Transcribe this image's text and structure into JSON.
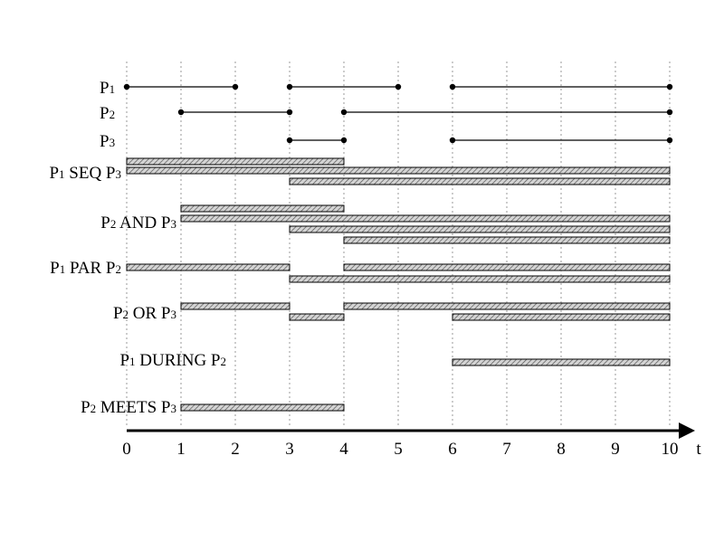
{
  "axis": {
    "label": "t",
    "min": 0,
    "max": 10,
    "ticks": [
      "0",
      "1",
      "2",
      "3",
      "4",
      "5",
      "6",
      "7",
      "8",
      "9",
      "10"
    ]
  },
  "colors": {
    "line": "#000000",
    "grid": "#999999",
    "bar_fill": "#d4d4d4",
    "hatch": "#555555"
  },
  "processes": [
    {
      "name": "P",
      "sub": "1",
      "segments": [
        [
          0,
          2
        ],
        [
          3,
          5
        ],
        [
          6,
          10
        ]
      ]
    },
    {
      "name": "P",
      "sub": "2",
      "segments": [
        [
          1,
          3
        ],
        [
          4,
          10
        ]
      ]
    },
    {
      "name": "P",
      "sub": "3",
      "segments": [
        [
          3,
          4
        ],
        [
          6,
          10
        ]
      ]
    }
  ],
  "operators": [
    {
      "parts": [
        {
          "t": "P"
        },
        {
          "s": "1"
        },
        {
          "t": " SEQ P"
        },
        {
          "s": "3"
        }
      ],
      "bars": [
        [
          0,
          4
        ],
        [
          0,
          10
        ],
        [
          3,
          10
        ]
      ]
    },
    {
      "parts": [
        {
          "t": "P"
        },
        {
          "s": "2"
        },
        {
          "t": " AND P"
        },
        {
          "s": "3"
        }
      ],
      "bars": [
        [
          1,
          4
        ],
        [
          1,
          10
        ],
        [
          3,
          10
        ],
        [
          4,
          10
        ]
      ]
    },
    {
      "parts": [
        {
          "t": "P"
        },
        {
          "s": "1"
        },
        {
          "t": " PAR P"
        },
        {
          "s": "2"
        }
      ],
      "bars": [
        [
          0,
          3
        ],
        [
          4,
          10
        ],
        [
          3,
          10
        ]
      ]
    },
    {
      "parts": [
        {
          "t": "P"
        },
        {
          "s": "2"
        },
        {
          "t": " OR P"
        },
        {
          "s": "3"
        }
      ],
      "bars": [
        [
          1,
          3
        ],
        [
          4,
          10
        ],
        [
          3,
          4
        ],
        [
          6,
          10
        ]
      ]
    },
    {
      "parts": [
        {
          "t": "P"
        },
        {
          "s": "1"
        },
        {
          "t": " DURING  P"
        },
        {
          "s": "2"
        }
      ],
      "bars": [
        [
          6,
          10
        ]
      ]
    },
    {
      "parts": [
        {
          "t": "P"
        },
        {
          "s": "2"
        },
        {
          "t": " MEETS P"
        },
        {
          "s": "3"
        }
      ],
      "bars": [
        [
          1,
          4
        ]
      ]
    }
  ]
}
